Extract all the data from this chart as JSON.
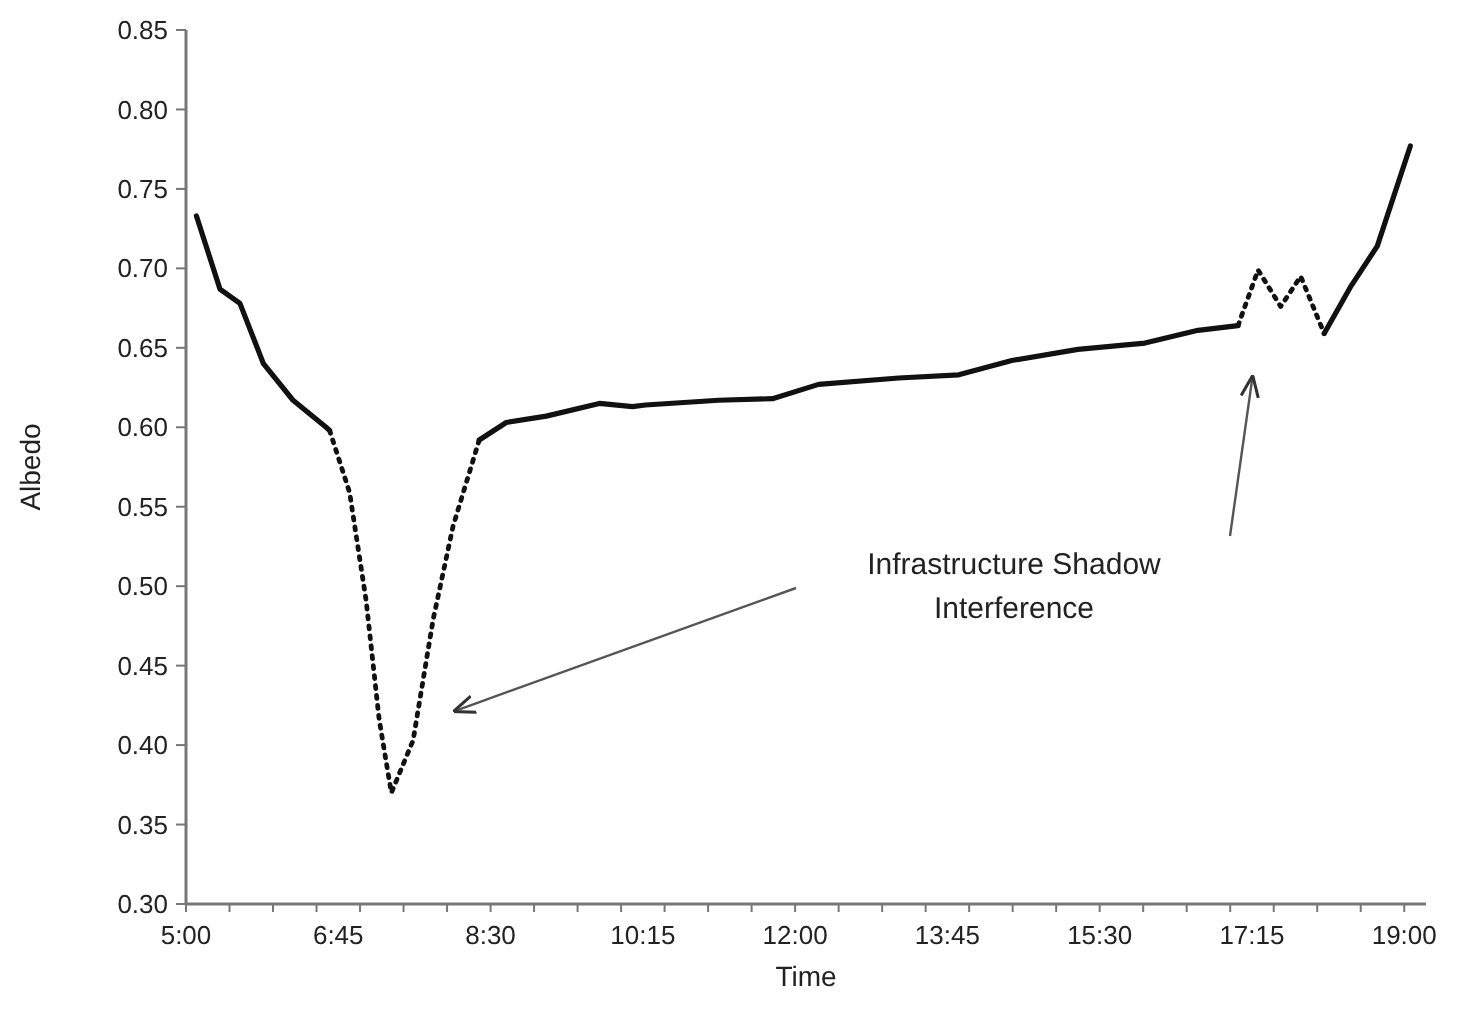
{
  "chart_data": {
    "type": "line",
    "xlabel": "Time",
    "ylabel": "Albedo",
    "xlim": [
      5,
      19.25
    ],
    "ylim": [
      0.3,
      0.85
    ],
    "xticks": [
      {
        "value": 5,
        "label": "5:00"
      },
      {
        "value": 6.75,
        "label": "6:45"
      },
      {
        "value": 8.5,
        "label": "8:30"
      },
      {
        "value": 10.25,
        "label": "10:15"
      },
      {
        "value": 12,
        "label": "12:00"
      },
      {
        "value": 13.75,
        "label": "13:45"
      },
      {
        "value": 15.5,
        "label": "15:30"
      },
      {
        "value": 17.25,
        "label": "17:15"
      },
      {
        "value": 19,
        "label": "19:00"
      }
    ],
    "yticks": [
      {
        "value": 0.3,
        "label": "0.30"
      },
      {
        "value": 0.35,
        "label": "0.35"
      },
      {
        "value": 0.4,
        "label": "0.40"
      },
      {
        "value": 0.45,
        "label": "0.45"
      },
      {
        "value": 0.5,
        "label": "0.50"
      },
      {
        "value": 0.55,
        "label": "0.55"
      },
      {
        "value": 0.6,
        "label": "0.60"
      },
      {
        "value": 0.65,
        "label": "0.65"
      },
      {
        "value": 0.7,
        "label": "0.70"
      },
      {
        "value": 0.75,
        "label": "0.75"
      },
      {
        "value": 0.8,
        "label": "0.80"
      },
      {
        "value": 0.85,
        "label": "0.85"
      }
    ],
    "grid": false,
    "series": [
      {
        "color": "#111111",
        "line_style": "solid",
        "x": [
          5.12,
          5.39,
          5.62,
          5.89,
          6.23,
          6.61,
          6.65,
          7.5,
          8.37,
          8.68,
          9.14,
          9.75,
          10.13,
          10.28,
          11.12,
          11.74,
          12.27,
          13.19,
          13.88,
          14.49,
          15.25,
          16.02,
          16.63,
          17.09,
          17.5,
          18.08,
          18.39,
          18.69,
          19.07
        ],
        "values": [
          0.733,
          0.687,
          0.678,
          0.64,
          0.617,
          0.6,
          0.598,
          null,
          0.592,
          0.603,
          0.607,
          0.615,
          0.613,
          0.614,
          0.617,
          0.618,
          0.627,
          0.631,
          0.633,
          0.642,
          0.649,
          0.653,
          0.661,
          0.664,
          null,
          0.659,
          0.689,
          0.714,
          0.777
        ]
      },
      {
        "color": "#111111",
        "line_style": "dotted",
        "x": [
          6.65,
          6.88,
          7.07,
          7.22,
          7.36,
          7.61,
          7.84,
          8.07,
          8.37,
          12,
          17.09,
          17.32,
          17.58,
          17.81,
          18.08
        ],
        "values": [
          0.598,
          0.559,
          0.491,
          0.416,
          0.37,
          0.403,
          0.479,
          0.538,
          0.592,
          null,
          0.664,
          0.699,
          0.676,
          0.695,
          0.659
        ]
      }
    ],
    "annotations": [
      "Infrastructure Shadow Interference"
    ]
  }
}
